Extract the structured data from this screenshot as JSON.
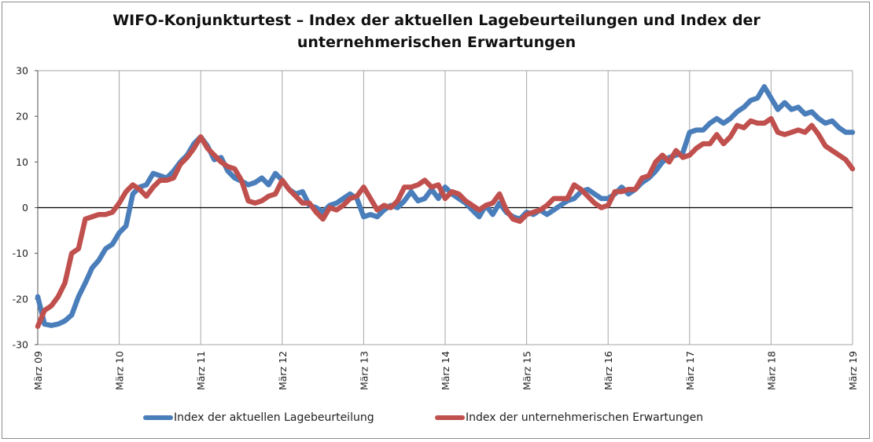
{
  "chart_data": {
    "type": "line",
    "title": "WIFO-Konjunkturtest – Index der aktuellen Lagebeurteilungen und Index der unternehmerischen Erwartungen",
    "title_lines": [
      "WIFO-Konjunkturtest – Index der aktuellen Lagebeurteilungen und Index der",
      "unternehmerischen Erwartungen"
    ],
    "ylim": [
      -30,
      30
    ],
    "yticks": [
      "30",
      "20",
      "10",
      "0",
      "-10",
      "-20",
      "-30"
    ],
    "ytick_values": [
      30,
      20,
      10,
      0,
      -10,
      -20,
      -30
    ],
    "x_start": "2009-03",
    "x_end": "2019-03",
    "xticks": [
      "März 09",
      "März 10",
      "März 11",
      "März 12",
      "März 13",
      "März 14",
      "März 15",
      "März 16",
      "März 17",
      "März 18",
      "März 19"
    ],
    "grid": {
      "vertical": true,
      "horizontal": false,
      "zero_line": true
    },
    "legend_position": "bottom",
    "series": [
      {
        "name": "Index der aktuellen Lagebeurteilung",
        "color": "#4a7ebb",
        "values": [
          -19.5,
          -25.5,
          -25.8,
          -25.5,
          -24.8,
          -23.5,
          -19.5,
          -16.5,
          -13.2,
          -11.5,
          -9.0,
          -8.0,
          -5.5,
          -4.0,
          3.0,
          4.5,
          5.0,
          7.5,
          7.0,
          6.5,
          8.0,
          10.0,
          11.5,
          14.0,
          15.5,
          13.5,
          10.5,
          11.0,
          8.0,
          6.5,
          5.8,
          5.0,
          5.5,
          6.5,
          5.0,
          7.5,
          6.0,
          4.0,
          3.0,
          3.5,
          0.5,
          0.0,
          -1.0,
          0.5,
          1.0,
          2.0,
          3.0,
          2.0,
          -2.0,
          -1.5,
          -2.0,
          -0.5,
          0.5,
          0.0,
          1.5,
          3.5,
          1.5,
          2.0,
          4.0,
          2.0,
          4.5,
          3.0,
          2.0,
          1.0,
          -0.5,
          -2.0,
          0.5,
          -1.5,
          1.0,
          -1.0,
          -2.0,
          -2.5,
          -1.0,
          -1.5,
          -0.5,
          -1.5,
          -0.5,
          0.5,
          1.5,
          2.0,
          3.5,
          4.0,
          3.0,
          2.0,
          2.0,
          3.0,
          4.5,
          3.0,
          4.0,
          5.5,
          6.5,
          8.0,
          10.0,
          11.0,
          11.5,
          12.0,
          16.5,
          17.0,
          17.0,
          18.5,
          19.5,
          18.5,
          19.5,
          21.0,
          22.0,
          23.5,
          24.0,
          26.5,
          24.0,
          21.5,
          23.0,
          21.5,
          22.0,
          20.5,
          21.0,
          19.5,
          18.5,
          19.0,
          17.5,
          16.5,
          16.5
        ]
      },
      {
        "name": "Index der unternehmerischen Erwartungen",
        "color": "#c0504d",
        "values": [
          -26.0,
          -22.5,
          -21.5,
          -19.5,
          -16.5,
          -10.0,
          -9.0,
          -2.5,
          -2.0,
          -1.5,
          -1.5,
          -1.0,
          1.0,
          3.5,
          5.0,
          4.0,
          2.5,
          4.5,
          6.0,
          6.0,
          6.5,
          9.5,
          11.0,
          13.0,
          15.5,
          13.0,
          11.5,
          10.0,
          9.0,
          8.5,
          6.0,
          1.5,
          1.0,
          1.5,
          2.5,
          3.0,
          6.0,
          4.0,
          2.5,
          1.0,
          1.0,
          -1.0,
          -2.5,
          0.0,
          -0.5,
          0.5,
          2.0,
          2.5,
          4.5,
          2.0,
          -0.5,
          0.5,
          0.0,
          1.5,
          4.5,
          4.5,
          5.0,
          6.0,
          4.5,
          5.0,
          2.0,
          3.5,
          3.0,
          1.5,
          0.5,
          -0.5,
          0.5,
          1.0,
          3.0,
          -0.5,
          -2.5,
          -3.0,
          -1.5,
          -1.0,
          -0.5,
          0.5,
          2.0,
          2.0,
          2.0,
          5.0,
          4.0,
          2.5,
          1.0,
          0.0,
          0.5,
          3.5,
          3.5,
          4.0,
          4.0,
          6.5,
          7.0,
          10.0,
          11.5,
          10.0,
          12.5,
          11.0,
          11.5,
          13.0,
          14.0,
          14.0,
          16.0,
          14.0,
          15.5,
          18.0,
          17.5,
          19.0,
          18.5,
          18.5,
          19.5,
          16.5,
          16.0,
          16.5,
          17.0,
          16.5,
          18.0,
          16.0,
          13.5,
          12.5,
          11.5,
          10.5,
          8.5
        ]
      }
    ]
  }
}
